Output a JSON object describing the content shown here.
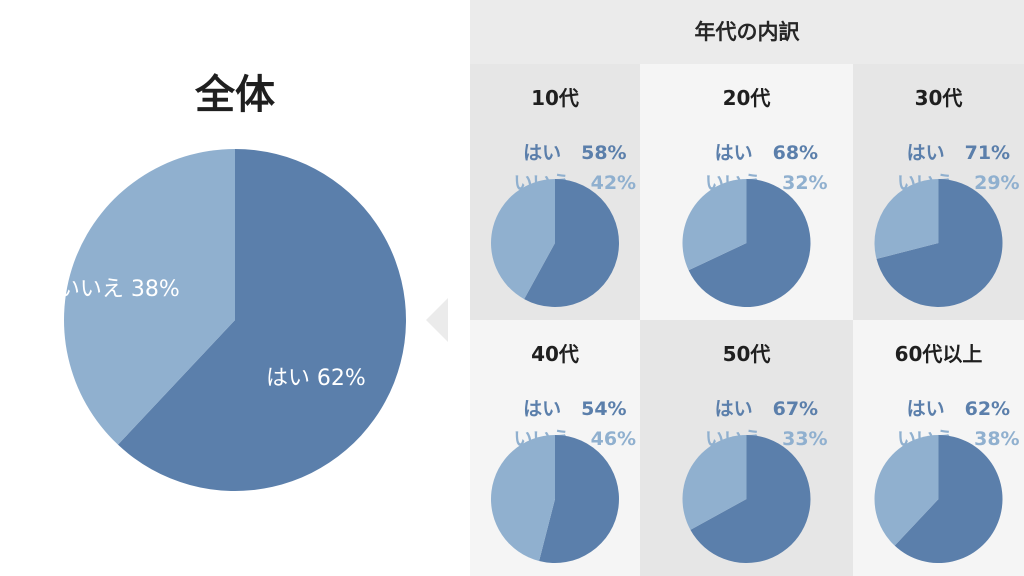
{
  "colors": {
    "yes": "#5b7fab",
    "no": "#90b0cf",
    "text_yes": "#5b7fab",
    "text_no": "#90b0cf"
  },
  "overall": {
    "title": "全体"
  },
  "breakdown": {
    "title": "年代の内訳"
  },
  "chart_data": [
    {
      "type": "pie",
      "title": "全体",
      "labels": [
        "はい",
        "いいえ"
      ],
      "values": [
        62,
        38
      ],
      "label_texts": [
        "はい 62%",
        "いいえ 38%"
      ]
    },
    {
      "type": "pie",
      "title": "10代",
      "labels": [
        "はい",
        "いいえ"
      ],
      "values": [
        58,
        42
      ],
      "value_texts": [
        "58%",
        "42%"
      ]
    },
    {
      "type": "pie",
      "title": "20代",
      "labels": [
        "はい",
        "いいえ"
      ],
      "values": [
        68,
        32
      ],
      "value_texts": [
        "68%",
        "32%"
      ]
    },
    {
      "type": "pie",
      "title": "30代",
      "labels": [
        "はい",
        "いいえ"
      ],
      "values": [
        71,
        29
      ],
      "value_texts": [
        "71%",
        "29%"
      ]
    },
    {
      "type": "pie",
      "title": "40代",
      "labels": [
        "はい",
        "いいえ"
      ],
      "values": [
        54,
        46
      ],
      "value_texts": [
        "54%",
        "46%"
      ]
    },
    {
      "type": "pie",
      "title": "50代",
      "labels": [
        "はい",
        "いいえ"
      ],
      "values": [
        67,
        33
      ],
      "value_texts": [
        "67%",
        "33%"
      ]
    },
    {
      "type": "pie",
      "title": "60代以上",
      "labels": [
        "はい",
        "いいえ"
      ],
      "values": [
        62,
        38
      ],
      "value_texts": [
        "62%",
        "38%"
      ]
    }
  ]
}
